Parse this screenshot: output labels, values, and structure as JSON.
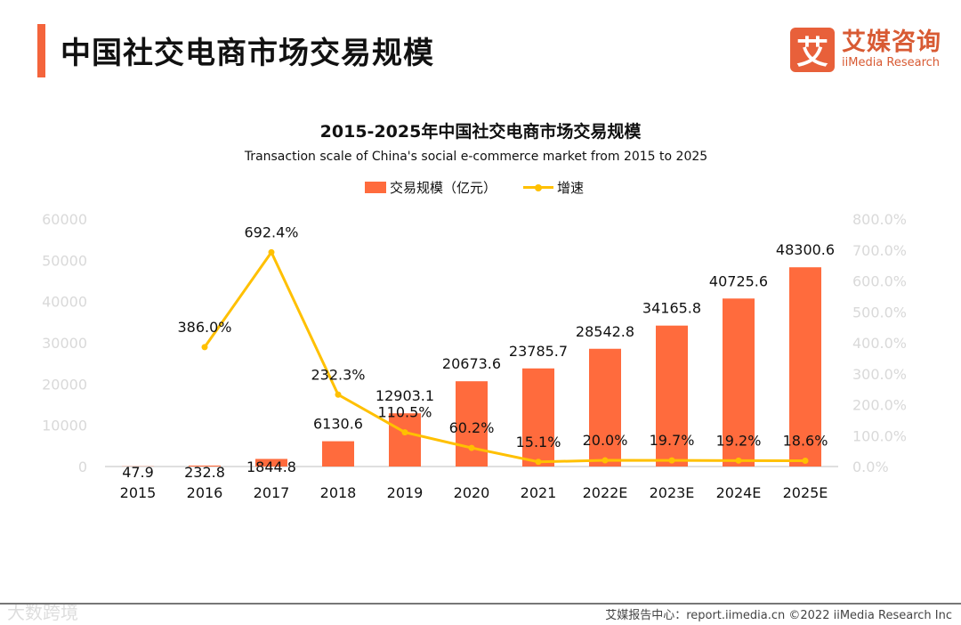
{
  "header": {
    "title": "中国社交电商市场交易规模"
  },
  "logo": {
    "mark": "艾",
    "cn": "艾媒咨询",
    "en": "iiMedia Research"
  },
  "chart_data": {
    "type": "bar+line",
    "title": "2015-2025年中国社交电商市场交易规模",
    "subtitle": "Transaction scale of China's social e-commerce market from 2015 to 2025",
    "categories": [
      "2015",
      "2016",
      "2017",
      "2018",
      "2019",
      "2020",
      "2021",
      "2022E",
      "2023E",
      "2024E",
      "2025E"
    ],
    "series": [
      {
        "name": "交易规模（亿元）",
        "type": "bar",
        "color": "#ff6b3d",
        "axis": "left",
        "values": [
          47.9,
          232.8,
          1844.8,
          6130.6,
          12903.1,
          20673.6,
          23785.7,
          28542.8,
          34165.8,
          40725.6,
          48300.6
        ],
        "labels": [
          "47.9",
          "232.8",
          "1844.8",
          "6130.6",
          "12903.1",
          "20673.6",
          "23785.7",
          "28542.8",
          "34165.8",
          "40725.6",
          "48300.6"
        ]
      },
      {
        "name": "增速",
        "type": "line",
        "color": "#ffc000",
        "axis": "right",
        "values": [
          null,
          386.0,
          692.4,
          232.3,
          110.5,
          60.2,
          15.1,
          20.0,
          19.7,
          19.2,
          18.6
        ],
        "labels": [
          "",
          "386.0%",
          "692.4%",
          "232.3%",
          "110.5%",
          "60.2%",
          "15.1%",
          "20.0%",
          "19.7%",
          "19.2%",
          "18.6%"
        ]
      }
    ],
    "y_left": {
      "ylim": [
        0,
        60000
      ],
      "ticks": [
        "0",
        "10000",
        "20000",
        "30000",
        "40000",
        "50000",
        "60000"
      ]
    },
    "y_right": {
      "ylim": [
        0,
        800
      ],
      "ticks": [
        "0.0%",
        "100.0%",
        "200.0%",
        "300.0%",
        "400.0%",
        "500.0%",
        "600.0%",
        "700.0%",
        "800.0%"
      ]
    },
    "grid": false,
    "legend": "top-center"
  },
  "footer": {
    "text": "艾媒报告中心：report.iimedia.cn   ©2022  iiMedia Research  Inc",
    "watermark": "大数跨境"
  }
}
